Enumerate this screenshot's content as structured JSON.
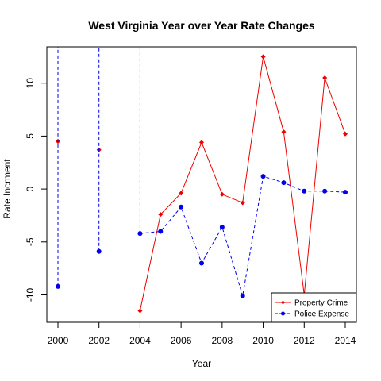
{
  "chart_data": {
    "type": "line",
    "title": "West Virginia Year over Year Rate Changes",
    "xlabel": "Year",
    "ylabel": "Rate Incrment",
    "xlim": [
      2000,
      2014
    ],
    "ylim": [
      -12.5,
      13.5
    ],
    "x_ticks": [
      2000,
      2002,
      2004,
      2006,
      2008,
      2010,
      2012,
      2014
    ],
    "y_ticks": [
      -10,
      -5,
      0,
      5,
      10
    ],
    "legend_position": "bottom-right",
    "series": [
      {
        "name": "Property Crime",
        "color": "#ee0000",
        "line_style": "solid",
        "marker": "diamond",
        "points": [
          {
            "x": 2000,
            "y": 4.5
          },
          {
            "x": 2002,
            "y": 3.7
          },
          {
            "x": 2004,
            "y": -11.5
          },
          {
            "x": 2005,
            "y": -2.4
          },
          {
            "x": 2006,
            "y": -0.4
          },
          {
            "x": 2007,
            "y": 4.4
          },
          {
            "x": 2008,
            "y": -0.5
          },
          {
            "x": 2009,
            "y": -1.3
          },
          {
            "x": 2010,
            "y": 12.5
          },
          {
            "x": 2011,
            "y": 5.4
          },
          {
            "x": 2012,
            "y": -10.0
          },
          {
            "x": 2013,
            "y": 10.5
          },
          {
            "x": 2014,
            "y": 5.2
          }
        ]
      },
      {
        "name": "Police Expense",
        "color": "#0000ee",
        "line_style": "dashed",
        "marker": "circle",
        "points": [
          {
            "x": 2000,
            "y": -9.2
          },
          {
            "x": 2002,
            "y": -5.9
          },
          {
            "x": 2004,
            "y": -4.2
          },
          {
            "x": 2005,
            "y": -4.0
          },
          {
            "x": 2006,
            "y": -1.7
          },
          {
            "x": 2007,
            "y": -7.0
          },
          {
            "x": 2008,
            "y": -3.6
          },
          {
            "x": 2009,
            "y": -10.1
          },
          {
            "x": 2010,
            "y": 1.2
          },
          {
            "x": 2011,
            "y": 0.6
          },
          {
            "x": 2012,
            "y": -0.2
          },
          {
            "x": 2013,
            "y": -0.2
          },
          {
            "x": 2014,
            "y": -0.3
          }
        ],
        "offscale_segments": [
          {
            "x": 2000,
            "from_y": -9.2,
            "to_y": 13.5
          },
          {
            "x": 2002,
            "from_y": -5.9,
            "to_y": 13.5
          },
          {
            "x": 2004,
            "from_y": -4.2,
            "to_y": 13.5
          }
        ]
      }
    ]
  }
}
